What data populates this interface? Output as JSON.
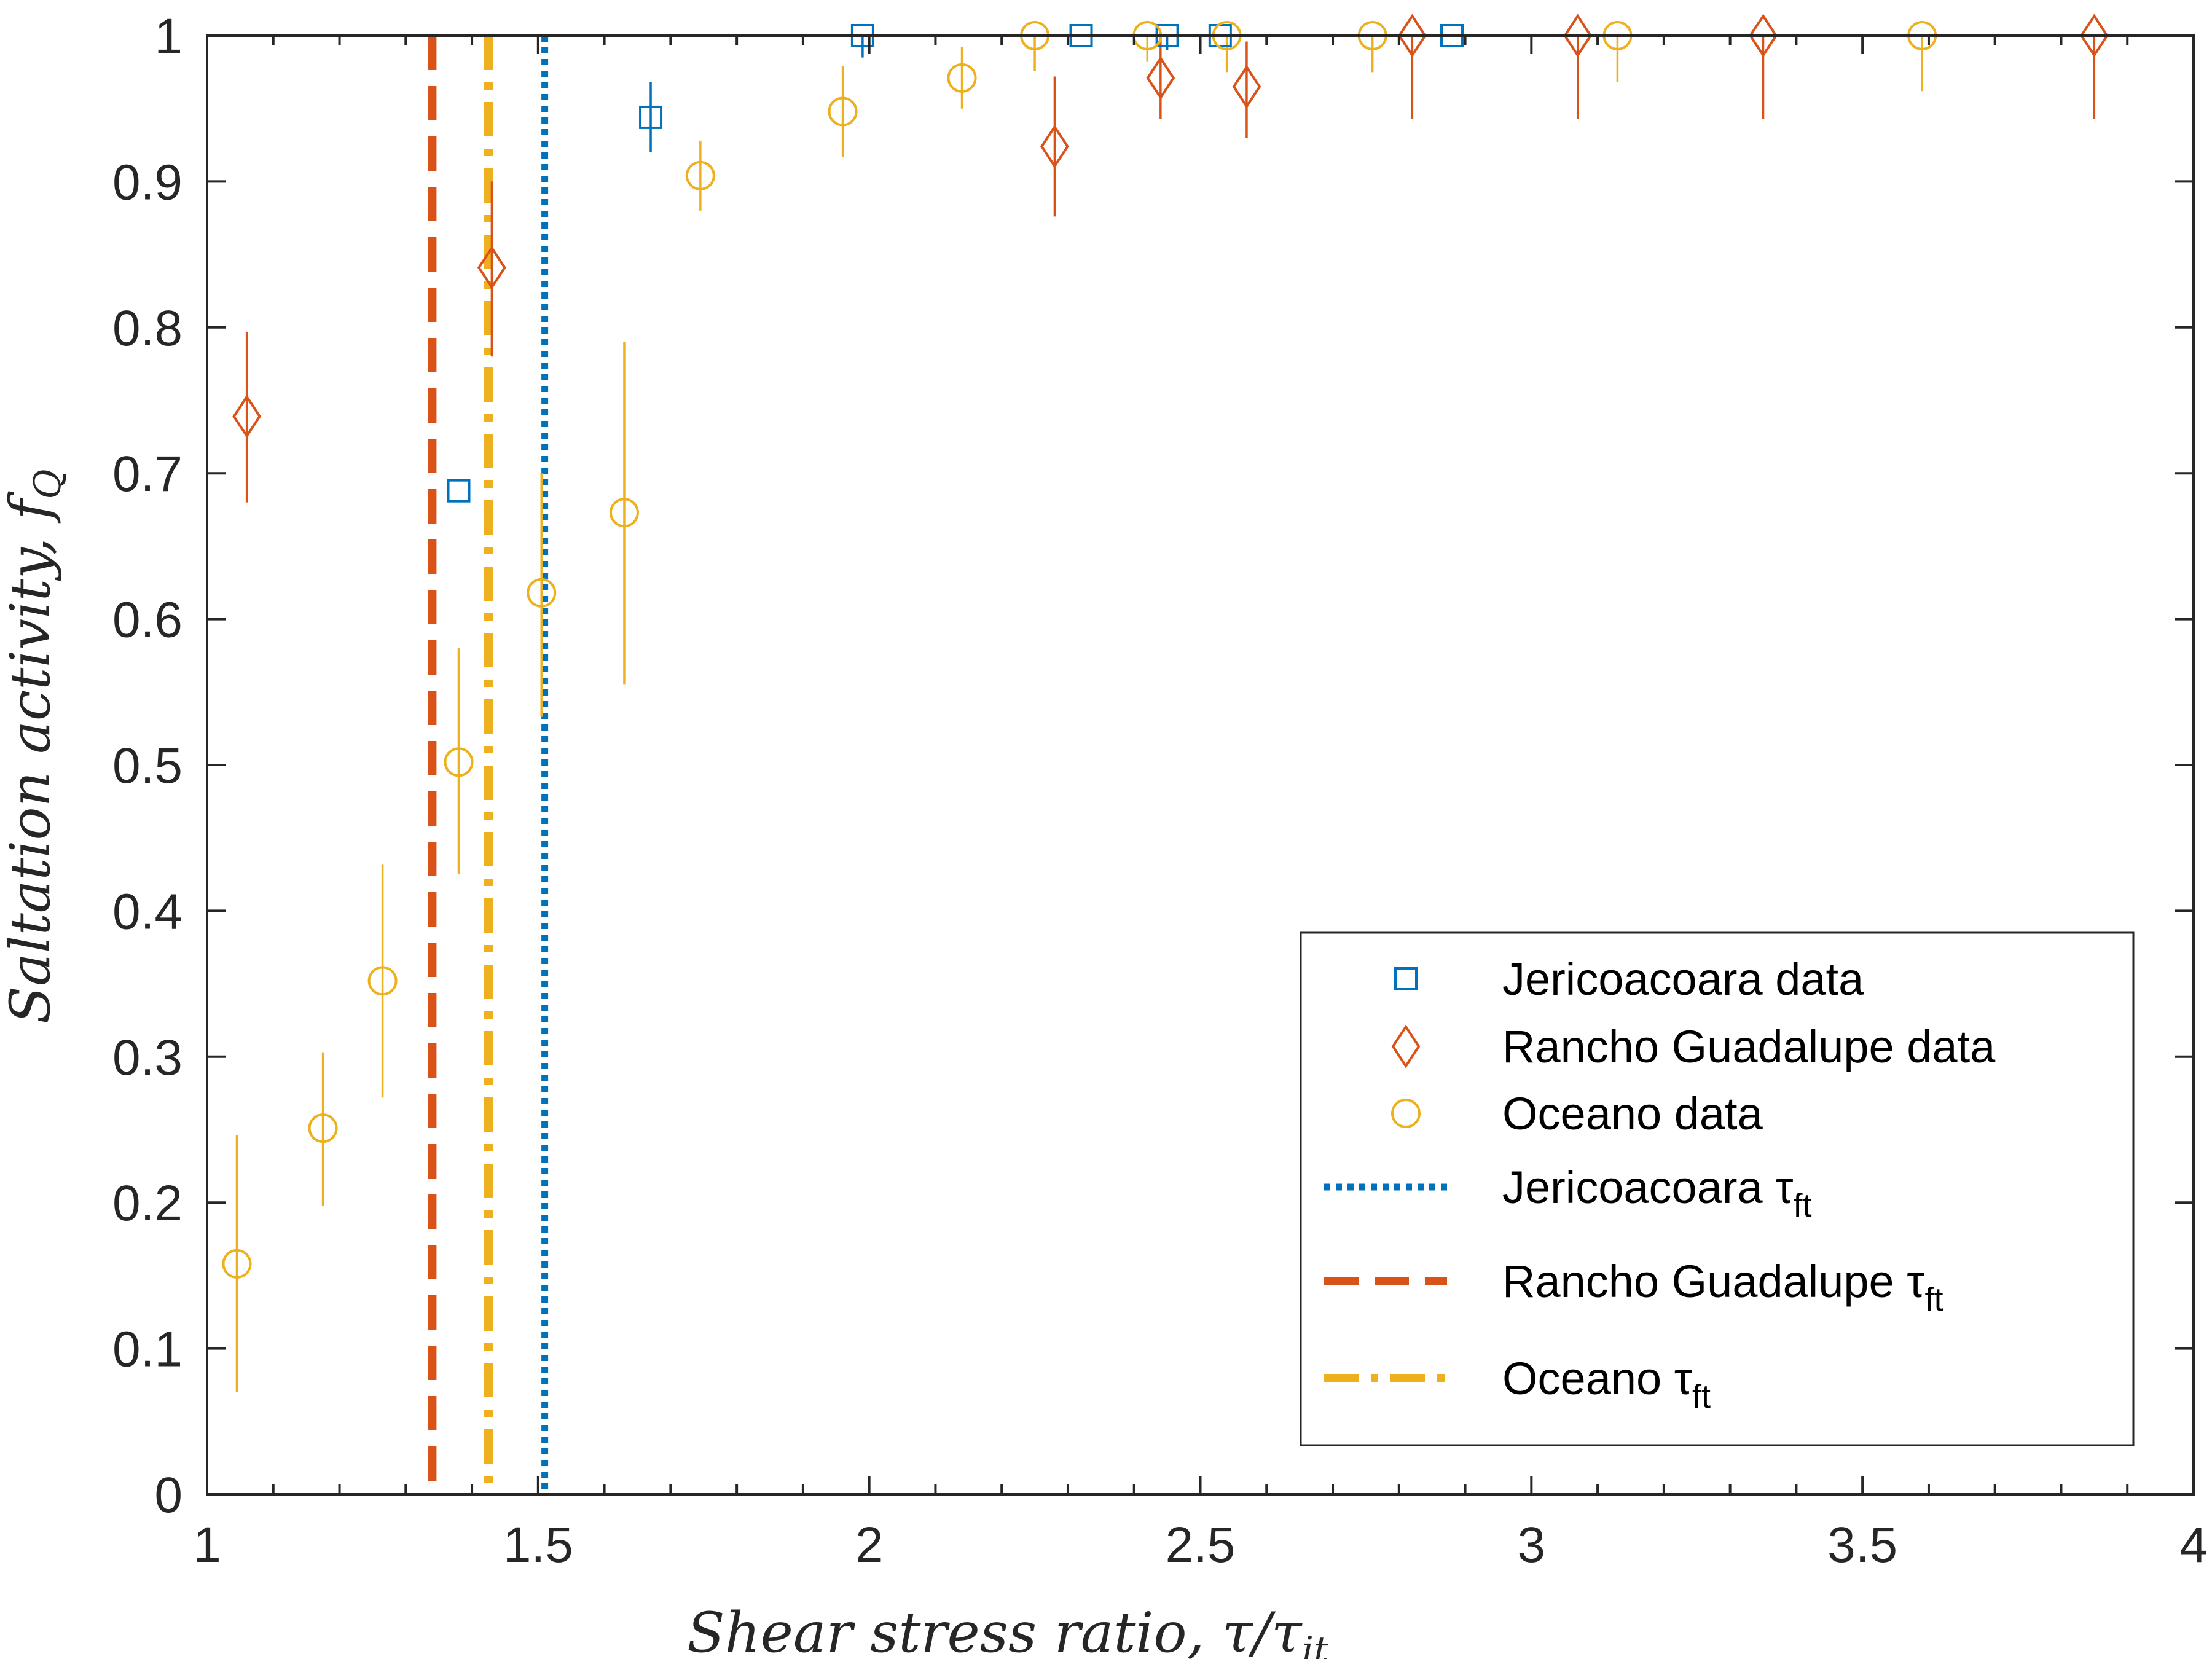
{
  "chart_data": {
    "type": "scatter",
    "xlabel": "Shear stress ratio, τ/τ",
    "xlabel_sub": "it",
    "ylabel": "Saltation activity, f",
    "ylabel_sub": "Q",
    "xlim": [
      1,
      4
    ],
    "ylim": [
      0,
      1
    ],
    "xticks": [
      1,
      1.5,
      2,
      2.5,
      3,
      3.5,
      4
    ],
    "xtick_labels": [
      "1",
      "1.5",
      "2",
      "2.5",
      "3",
      "3.5",
      "4"
    ],
    "yticks": [
      0,
      0.1,
      0.2,
      0.3,
      0.4,
      0.5,
      0.6,
      0.7,
      0.8,
      0.9,
      1
    ],
    "ytick_labels": [
      "0",
      "0.1",
      "0.2",
      "0.3",
      "0.4",
      "0.5",
      "0.6",
      "0.7",
      "0.8",
      "0.9",
      "1"
    ],
    "grid": false,
    "legend_position": "bottom-right",
    "series": [
      {
        "name": "Jericoacoara data",
        "marker": "square",
        "color": "#0072BD",
        "points": [
          {
            "x": 1.38,
            "y": 0.688,
            "lo": 0.688,
            "hi": 0.688
          },
          {
            "x": 1.67,
            "y": 0.944,
            "lo": 0.92,
            "hi": 0.968
          },
          {
            "x": 1.99,
            "y": 1.0,
            "lo": 0.985,
            "hi": 1.0
          },
          {
            "x": 2.32,
            "y": 1.0,
            "lo": 1.0,
            "hi": 1.0
          },
          {
            "x": 2.45,
            "y": 1.0,
            "lo": 0.99,
            "hi": 1.0
          },
          {
            "x": 2.53,
            "y": 1.0,
            "lo": 1.0,
            "hi": 1.0
          },
          {
            "x": 2.88,
            "y": 1.0,
            "lo": 1.0,
            "hi": 1.0
          }
        ]
      },
      {
        "name": "Rancho Guadalupe data",
        "marker": "diamond",
        "color": "#D95319",
        "points": [
          {
            "x": 1.06,
            "y": 0.739,
            "lo": 0.68,
            "hi": 0.797
          },
          {
            "x": 1.43,
            "y": 0.841,
            "lo": 0.78,
            "hi": 0.9
          },
          {
            "x": 2.28,
            "y": 0.924,
            "lo": 0.876,
            "hi": 0.972
          },
          {
            "x": 2.44,
            "y": 0.971,
            "lo": 0.943,
            "hi": 0.999
          },
          {
            "x": 2.57,
            "y": 0.965,
            "lo": 0.93,
            "hi": 0.996
          },
          {
            "x": 2.82,
            "y": 1.0,
            "lo": 0.943,
            "hi": 1.0
          },
          {
            "x": 3.07,
            "y": 1.0,
            "lo": 0.943,
            "hi": 1.0
          },
          {
            "x": 3.35,
            "y": 1.0,
            "lo": 0.943,
            "hi": 1.0
          },
          {
            "x": 3.85,
            "y": 1.0,
            "lo": 0.943,
            "hi": 1.0
          }
        ]
      },
      {
        "name": "Oceano data",
        "marker": "circle",
        "color": "#EDB120",
        "points": [
          {
            "x": 1.045,
            "y": 0.158,
            "lo": 0.07,
            "hi": 0.246
          },
          {
            "x": 1.175,
            "y": 0.251,
            "lo": 0.198,
            "hi": 0.303
          },
          {
            "x": 1.265,
            "y": 0.352,
            "lo": 0.272,
            "hi": 0.432
          },
          {
            "x": 1.38,
            "y": 0.502,
            "lo": 0.425,
            "hi": 0.58
          },
          {
            "x": 1.505,
            "y": 0.618,
            "lo": 0.533,
            "hi": 0.7
          },
          {
            "x": 1.63,
            "y": 0.673,
            "lo": 0.555,
            "hi": 0.79
          },
          {
            "x": 1.745,
            "y": 0.904,
            "lo": 0.88,
            "hi": 0.928
          },
          {
            "x": 1.96,
            "y": 0.948,
            "lo": 0.917,
            "hi": 0.979
          },
          {
            "x": 2.14,
            "y": 0.971,
            "lo": 0.95,
            "hi": 0.992
          },
          {
            "x": 2.25,
            "y": 1.0,
            "lo": 0.976,
            "hi": 1.0
          },
          {
            "x": 2.42,
            "y": 1.0,
            "lo": 0.982,
            "hi": 1.0
          },
          {
            "x": 2.54,
            "y": 1.0,
            "lo": 0.975,
            "hi": 1.0
          },
          {
            "x": 2.76,
            "y": 1.0,
            "lo": 0.975,
            "hi": 1.0
          },
          {
            "x": 3.13,
            "y": 1.0,
            "lo": 0.968,
            "hi": 1.0
          },
          {
            "x": 3.59,
            "y": 1.0,
            "lo": 0.962,
            "hi": 1.0
          }
        ]
      }
    ],
    "threshold_lines": [
      {
        "name": "Jericoacoara τ",
        "sub": "ft",
        "x": 1.51,
        "style": "dotted",
        "color": "#0072BD"
      },
      {
        "name": "Rancho Guadalupe τ",
        "sub": "ft",
        "x": 1.34,
        "style": "dashed",
        "color": "#D95319"
      },
      {
        "name": "Oceano τ",
        "sub": "ft",
        "x": 1.425,
        "style": "dashdot",
        "color": "#EDB120"
      }
    ]
  }
}
